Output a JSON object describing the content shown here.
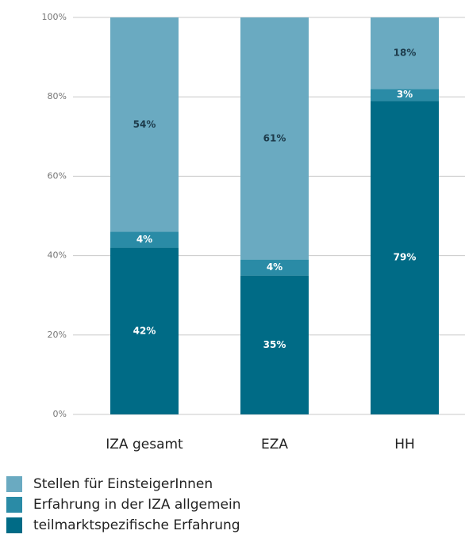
{
  "chart_data": {
    "type": "stacked_bar",
    "categories": [
      "IZA gesamt",
      "EZA",
      "HH"
    ],
    "series": [
      {
        "name": "Stellen für EinsteigerInnen",
        "color": "#6aaac1",
        "label_color": "#1d3b4b",
        "values": [
          54,
          61,
          18
        ],
        "value_labels": [
          "54%",
          "61%",
          "18%"
        ]
      },
      {
        "name": "Erfahrung in der IZA allgemein",
        "color": "#2a8ba6",
        "label_color": "#ffffff",
        "values": [
          4,
          4,
          3
        ],
        "value_labels": [
          "4%",
          "4%",
          "3%"
        ]
      },
      {
        "name": "teilmarktspezifische Erfahrung",
        "color": "#006b86",
        "label_color": "#ffffff",
        "values": [
          42,
          35,
          79
        ],
        "value_labels": [
          "42%",
          "35%",
          "79%"
        ]
      }
    ],
    "ylim": [
      0,
      100
    ],
    "yticks": [
      {
        "value": 0,
        "label": "0%"
      },
      {
        "value": 20,
        "label": "20%"
      },
      {
        "value": 40,
        "label": "40%"
      },
      {
        "value": 60,
        "label": "60%"
      },
      {
        "value": 80,
        "label": "80%"
      },
      {
        "value": 100,
        "label": "100%"
      }
    ],
    "grid": true
  }
}
